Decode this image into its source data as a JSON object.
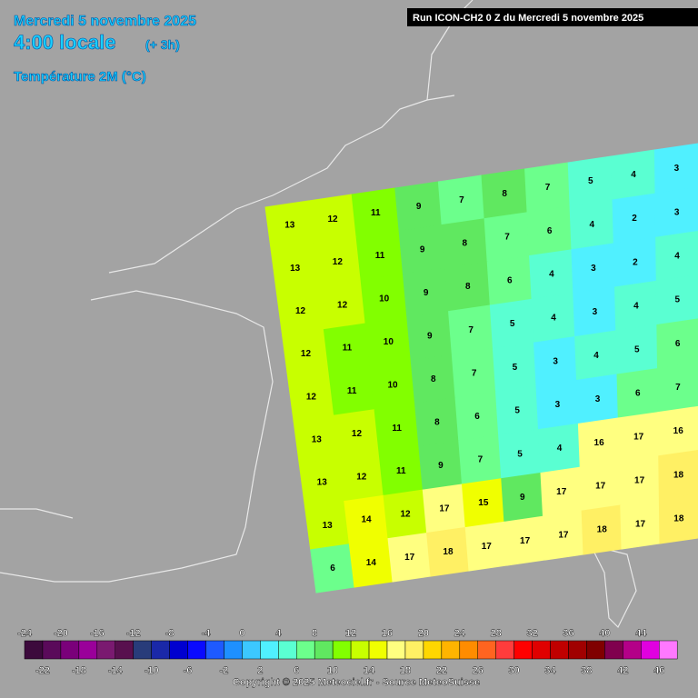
{
  "header": {
    "date": "Mercredi 5 novembre 2025",
    "time": "4:00 locale",
    "offset": "(+ 3h)",
    "variable": "Température 2M (°C)",
    "run": "Run ICON-CH2 0 Z du Mercredi 5 novembre 2025",
    "copyright": "Copyright © 2025 Meteociel.fr - Source MeteoSuisse"
  },
  "field": {
    "rows": [
      [
        13,
        12,
        11,
        9,
        7,
        8,
        7,
        5,
        4,
        3
      ],
      [
        13,
        12,
        11,
        9,
        8,
        7,
        6,
        4,
        2,
        3
      ],
      [
        12,
        12,
        10,
        9,
        8,
        6,
        4,
        3,
        2,
        4
      ],
      [
        12,
        11,
        10,
        9,
        7,
        5,
        4,
        3,
        4,
        5
      ],
      [
        12,
        11,
        10,
        8,
        7,
        5,
        3,
        4,
        5,
        6
      ],
      [
        13,
        12,
        11,
        8,
        6,
        5,
        3,
        3,
        6,
        7
      ],
      [
        13,
        12,
        11,
        9,
        7,
        5,
        4,
        16,
        17,
        16
      ],
      [
        13,
        14,
        12,
        17,
        15,
        9,
        17,
        17,
        17,
        18
      ],
      [
        6,
        14,
        17,
        18,
        17,
        17,
        17,
        18,
        17,
        18
      ]
    ]
  },
  "legend": {
    "levels": [
      -24,
      -22,
      -20,
      -18,
      -16,
      -14,
      -12,
      -10,
      -8,
      -6,
      -4,
      -2,
      0,
      2,
      4,
      6,
      8,
      10,
      12,
      14,
      16,
      18,
      20,
      22,
      24,
      26,
      28,
      30,
      32,
      34,
      36,
      38,
      40,
      42,
      44,
      46
    ],
    "colors": [
      "#3c0a3c",
      "#5a0a5a",
      "#7a007a",
      "#9a009a",
      "#7a1a70",
      "#58104e",
      "#283c7a",
      "#1a28a8",
      "#0000d0",
      "#0a0aff",
      "#1e5aff",
      "#1e90ff",
      "#3cc8ff",
      "#50f0ff",
      "#5affd2",
      "#6cff8c",
      "#60e860",
      "#82ff00",
      "#c8ff00",
      "#f0ff00",
      "#ffff80",
      "#fff064",
      "#ffd700",
      "#ffb400",
      "#ff8c00",
      "#ff6420",
      "#ff3c3c",
      "#ff0000",
      "#e00000",
      "#c00000",
      "#a00000",
      "#800000",
      "#80004e",
      "#b40088",
      "#e000e0",
      "#ff78ff"
    ]
  }
}
